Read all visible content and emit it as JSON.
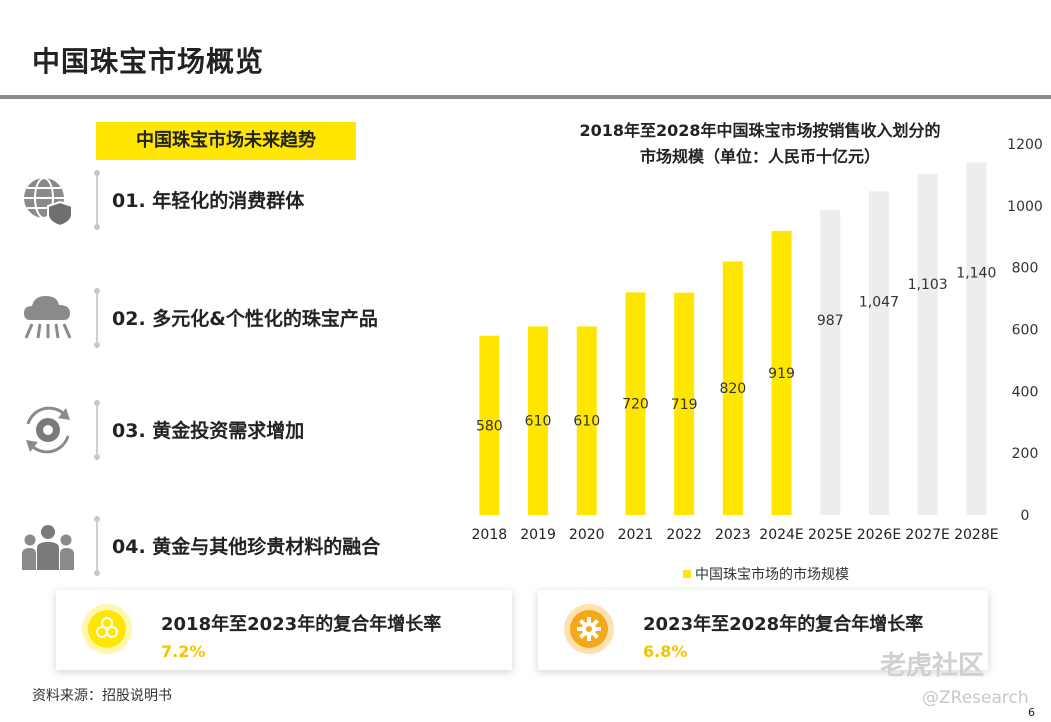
{
  "page": {
    "title": "中国珠宝市场概览",
    "source": "资料来源：招股说明书",
    "page_number": "6",
    "watermark": "老虎社区",
    "watermark_handle": "@ZResearch"
  },
  "trends": {
    "header": "中国珠宝市场未来趋势",
    "items": [
      {
        "label": "01. 年轻化的消费群体",
        "icon": "globe-shield-icon"
      },
      {
        "label": "02. 多元化&个性化的珠宝产品",
        "icon": "cloud-network-icon"
      },
      {
        "label": "03. 黄金投资需求增加",
        "icon": "gear-cycle-icon"
      },
      {
        "label": "04. 黄金与其他珍贵材料的融合",
        "icon": "people-group-icon"
      }
    ]
  },
  "chart_title": {
    "line1": "2018年至2028年中国珠宝市场按销售收入划分的",
    "line2": "市场规模（单位：人民币十亿元）"
  },
  "chart_data": {
    "type": "bar",
    "categories": [
      "2018",
      "2019",
      "2020",
      "2021",
      "2022",
      "2023",
      "2024E",
      "2025E",
      "2026E",
      "2027E",
      "2028E"
    ],
    "values": [
      580,
      610,
      610,
      720,
      719,
      820,
      919,
      987,
      1047,
      1103,
      1140
    ],
    "value_labels": [
      "580",
      "610",
      "610",
      "720",
      "719",
      "820",
      "919",
      "987",
      "1,047",
      "1,103",
      "1,140"
    ],
    "ylim": [
      0,
      1200
    ],
    "yticks": [
      "0",
      "200",
      "400",
      "600",
      "800",
      "1000",
      "1200"
    ],
    "y_axis_position": "right",
    "legend": "中国珠宝市场的市场规模",
    "legend_placement": "bottom",
    "colors": {
      "actual": "#ffe600",
      "forecast": "#ededed"
    }
  },
  "cards": [
    {
      "title": "2018年至2023年的复合年增长率",
      "value": "7.2%",
      "icon": "flower-icon",
      "icon_color": "#ffe600"
    },
    {
      "title": "2023年至2028年的复合年增长率",
      "value": "6.8%",
      "icon": "gear-icon",
      "icon_color": "#f5a81c"
    }
  ]
}
